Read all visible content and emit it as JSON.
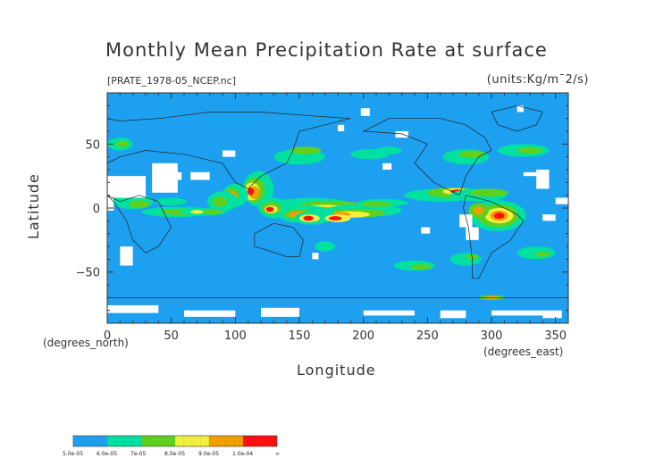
{
  "chart_data": {
    "type": "heatmap",
    "title": "Monthly Mean Precipitation Rate at surface",
    "source_label": "[PRATE_1978-05_NCEP.nc]",
    "units_label": "(units:Kg/m¯2/s)",
    "xlabel": "Longitude",
    "ylabel": "Latitude",
    "x_units_left": "(degrees_north)",
    "x_units_right": "(degrees_east)",
    "xlim": [
      0,
      360
    ],
    "ylim": [
      -90,
      90
    ],
    "xticks": [
      "0",
      "50",
      "100",
      "150",
      "200",
      "250",
      "300",
      "350"
    ],
    "xtick_values": [
      0,
      50,
      100,
      150,
      200,
      250,
      300,
      350
    ],
    "yticks": [
      "50",
      "0",
      "−50"
    ],
    "ytick_values": [
      50,
      0,
      -50
    ],
    "colorbar": {
      "labels": [
        "5.0e-05",
        "6.0e-05",
        "7e-05",
        "8.0e-05",
        "9.0e-05",
        "1.0e-04",
        "∞"
      ],
      "colors": [
        "#1ea0f0",
        "#00e0a0",
        "#60d020",
        "#f0f040",
        "#f0a000",
        "#ff1010"
      ]
    },
    "background_color": "#1ea0f0",
    "bands": [
      {
        "level": 1,
        "color": "#00e0a0"
      },
      {
        "level": 2,
        "color": "#60d020"
      },
      {
        "level": 3,
        "color": "#f0f040"
      },
      {
        "level": 4,
        "color": "#f0a000"
      },
      {
        "level": 5,
        "color": "#ff1010"
      }
    ]
  }
}
